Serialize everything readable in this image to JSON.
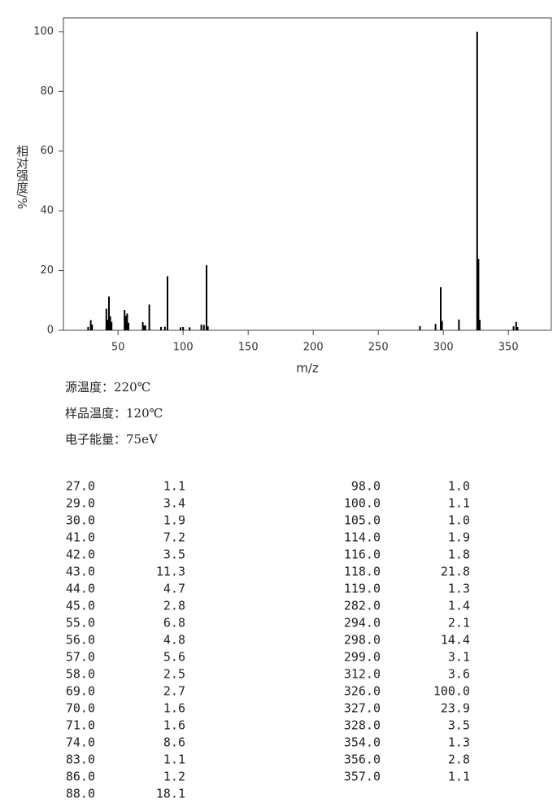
{
  "chart_data": {
    "type": "bar",
    "xlabel": "m/z",
    "ylabel": "相对强度/%",
    "x": [
      27,
      29,
      30,
      41,
      42,
      43,
      44,
      45,
      55,
      56,
      57,
      58,
      69,
      70,
      71,
      74,
      83,
      86,
      88,
      98,
      100,
      105,
      114,
      116,
      118,
      119,
      282,
      294,
      298,
      299,
      312,
      326,
      327,
      328,
      354,
      356,
      357
    ],
    "values": [
      1.1,
      3.4,
      1.9,
      7.2,
      3.5,
      11.3,
      4.7,
      2.8,
      6.8,
      4.8,
      5.6,
      2.5,
      2.7,
      1.6,
      1.6,
      8.6,
      1.1,
      1.2,
      18.1,
      1.0,
      1.1,
      1.0,
      1.9,
      1.8,
      21.8,
      1.3,
      1.4,
      2.1,
      14.4,
      3.1,
      3.6,
      100.0,
      23.9,
      3.5,
      1.3,
      2.8,
      1.1
    ],
    "color": "#000000",
    "xlim": [
      8,
      383
    ],
    "ylim": [
      0,
      104.6
    ],
    "xticks": [
      50,
      100,
      150,
      200,
      250,
      300,
      350
    ],
    "yticks": [
      0,
      20,
      40,
      60,
      80,
      100
    ]
  },
  "conditions": [
    "源温度：220℃",
    "样品温度：120℃",
    "电子能量：75eV"
  ],
  "table": {
    "left": [
      [
        "27.0",
        "1.1"
      ],
      [
        "29.0",
        "3.4"
      ],
      [
        "30.0",
        "1.9"
      ],
      [
        "41.0",
        "7.2"
      ],
      [
        "42.0",
        "3.5"
      ],
      [
        "43.0",
        "11.3"
      ],
      [
        "44.0",
        "4.7"
      ],
      [
        "45.0",
        "2.8"
      ],
      [
        "55.0",
        "6.8"
      ],
      [
        "56.0",
        "4.8"
      ],
      [
        "57.0",
        "5.6"
      ],
      [
        "58.0",
        "2.5"
      ],
      [
        "69.0",
        "2.7"
      ],
      [
        "70.0",
        "1.6"
      ],
      [
        "71.0",
        "1.6"
      ],
      [
        "74.0",
        "8.6"
      ],
      [
        "83.0",
        "1.1"
      ],
      [
        "86.0",
        "1.2"
      ],
      [
        "88.0",
        "18.1"
      ]
    ],
    "right": [
      [
        "98.0",
        "1.0"
      ],
      [
        "100.0",
        "1.1"
      ],
      [
        "105.0",
        "1.0"
      ],
      [
        "114.0",
        "1.9"
      ],
      [
        "116.0",
        "1.8"
      ],
      [
        "118.0",
        "21.8"
      ],
      [
        "119.0",
        "1.3"
      ],
      [
        "282.0",
        "1.4"
      ],
      [
        "294.0",
        "2.1"
      ],
      [
        "298.0",
        "14.4"
      ],
      [
        "299.0",
        "3.1"
      ],
      [
        "312.0",
        "3.6"
      ],
      [
        "326.0",
        "100.0"
      ],
      [
        "327.0",
        "23.9"
      ],
      [
        "328.0",
        "3.5"
      ],
      [
        "354.0",
        "1.3"
      ],
      [
        "356.0",
        "2.8"
      ],
      [
        "357.0",
        "1.1"
      ]
    ]
  }
}
